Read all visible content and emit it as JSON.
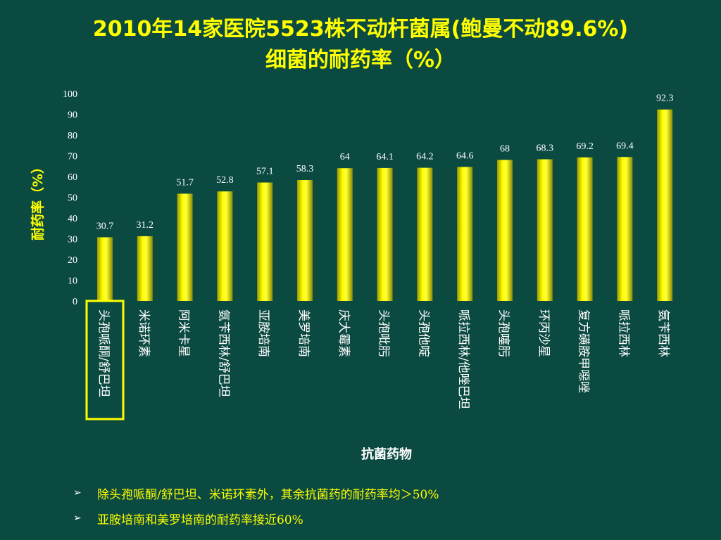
{
  "title_line1": "2010年14家医院5523株不动杆菌属(鲍曼不动89.6%)",
  "title_line2": "细菌的耐药率（%）",
  "chart_data": {
    "type": "bar",
    "ylabel": "耐药率（%）",
    "xlabel": "抗菌药物",
    "ylim": [
      0,
      100
    ],
    "yticks": [
      0,
      10,
      20,
      30,
      40,
      50,
      60,
      70,
      80,
      90,
      100
    ],
    "grid": false,
    "categories": [
      "头孢哌酮/舒巴坦",
      "米诺环素",
      "阿米卡星",
      "氨苄西林/舒巴坦",
      "亚胺培南",
      "美罗培南",
      "庆大霉素",
      "头孢吡肟",
      "头孢他啶",
      "哌拉西林/他唑巴坦",
      "头孢噻肟",
      "环丙沙星",
      "复方磺胺甲噁唑",
      "哌拉西林",
      "氨苄西林"
    ],
    "values": [
      30.7,
      31.2,
      51.7,
      52.8,
      57.1,
      58.3,
      64,
      64.1,
      64.2,
      64.6,
      68,
      68.3,
      69.2,
      69.4,
      92.3
    ],
    "value_labels": [
      "30.7",
      "31.2",
      "51.7",
      "52.8",
      "57.1",
      "58.3",
      "64",
      "64.1",
      "64.2",
      "64.6",
      "68",
      "68.3",
      "69.2",
      "69.4",
      "92.3"
    ],
    "highlighted_category": "头孢哌酮/舒巴坦",
    "bar_color": "#ffff00",
    "highlight_color": "#ffff00"
  },
  "bullets": [
    "除头孢哌酮/舒巴坦、米诺环素外，其余抗菌药的耐药率均＞50%",
    "亚胺培南和美罗培南的耐药率接近60%"
  ],
  "colors": {
    "background": "#0b4a41",
    "title": "#ffff00",
    "axis_label": "#ffff00",
    "tick_text": "#ffffff",
    "bullet_text": "#ffff00"
  },
  "icons": {
    "bullet": "arrow-bullet-icon"
  }
}
